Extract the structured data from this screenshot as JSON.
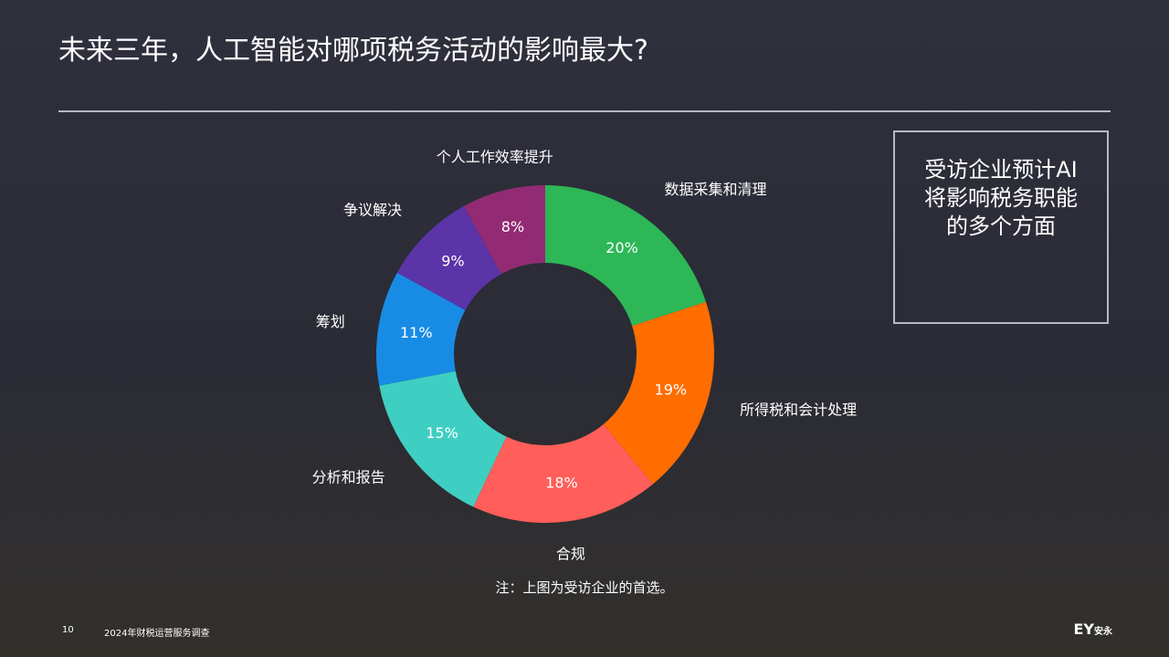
{
  "title": "未来三年，人工智能对哪项税务活动的影响最大?",
  "chart_data": {
    "type": "donut",
    "categories": [
      "数据采集和清理",
      "所得税和会计处理",
      "合规",
      "分析和报告",
      "筹划",
      "争议解决",
      "个人工作效率提升"
    ],
    "values": [
      20,
      19,
      18,
      15,
      11,
      9,
      8
    ],
    "value_labels": [
      "20%",
      "19%",
      "18%",
      "15%",
      "11%",
      "9%",
      "8%"
    ],
    "colors": [
      "#2db757",
      "#ff6d00",
      "#ff5e5a",
      "#3fcfc2",
      "#188ce5",
      "#5b34a8",
      "#922b73"
    ]
  },
  "callout": [
    "受访企业预计AI",
    "将影响税务职能",
    "的多个方面"
  ],
  "note": "注：上图为受访企业的首选。",
  "footer": {
    "page": "10",
    "text": "2024年财税运营服务调查",
    "logo": "EY",
    "logo_cn": "安永"
  }
}
